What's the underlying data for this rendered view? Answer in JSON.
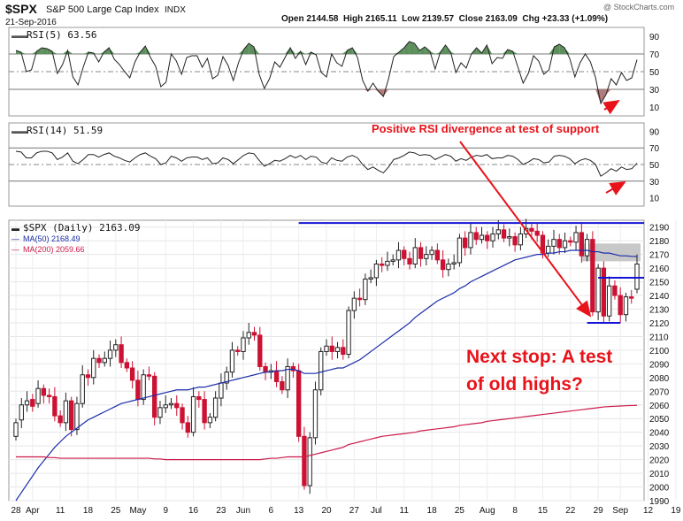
{
  "header": {
    "symbol": "$SPX",
    "name": "S&P 500 Large Cap Index",
    "exchange": "INDX",
    "date": "21-Sep-2016",
    "ohlc_text": "Open 2144.58  High 2165.11  Low 2139.57  Close 2163.09  Chg +23.33 (+1.09%)",
    "watermark": "@ StockCharts.com",
    "ohlc_arrow": "▲"
  },
  "annotations": {
    "divergence": "Positive RSI divergence at test of support",
    "next_stop_line1": "Next stop: A test",
    "next_stop_line2": "of old highs?"
  },
  "colors": {
    "price_up": "#222222",
    "price_down": "#cc1133",
    "ma50": "#1a2da8",
    "ma200": "#cc1a4a",
    "rsi_line": "#222222",
    "rsi_over": "#5d8f5d",
    "rsi_under": "#b07a7a",
    "annotation": "#e8131a",
    "resistance": "#1414d6",
    "gap_box": "#c8c8c8"
  },
  "chart_data": [
    {
      "type": "line",
      "title": "RSI(5) 63.56",
      "legend": "RSI(5) 63.56",
      "ylim": [
        0,
        100
      ],
      "yticks": [
        "90",
        "70",
        "50",
        "30",
        "10"
      ],
      "ytick_values": [
        90,
        70,
        50,
        30,
        10
      ],
      "reference_lines": [
        70,
        50,
        30
      ],
      "values": [
        74,
        72,
        50,
        52,
        73,
        77,
        76,
        73,
        48,
        58,
        74,
        44,
        35,
        55,
        72,
        71,
        61,
        72,
        77,
        64,
        58,
        50,
        43,
        61,
        72,
        79,
        66,
        56,
        33,
        38,
        70,
        62,
        47,
        66,
        68,
        68,
        55,
        65,
        42,
        46,
        67,
        57,
        40,
        60,
        75,
        82,
        78,
        47,
        31,
        42,
        61,
        55,
        66,
        77,
        65,
        73,
        58,
        72,
        69,
        49,
        44,
        70,
        60,
        56,
        74,
        77,
        66,
        40,
        28,
        37,
        28,
        22,
        42,
        67,
        72,
        77,
        84,
        82,
        74,
        78,
        73,
        53,
        72,
        80,
        72,
        49,
        60,
        54,
        70,
        77,
        71,
        80,
        59,
        66,
        65,
        75,
        73,
        55,
        37,
        48,
        68,
        62,
        47,
        52,
        78,
        81,
        77,
        65,
        44,
        60,
        70,
        61,
        43,
        14,
        24,
        42,
        35,
        49,
        40,
        43,
        63.56
      ]
    },
    {
      "type": "line",
      "title": "RSI(14) 51.59",
      "legend": "RSI(14) 51.59",
      "ylim": [
        0,
        100
      ],
      "yticks": [
        "90",
        "70",
        "50",
        "30",
        "10"
      ],
      "ytick_values": [
        90,
        70,
        50,
        30,
        10
      ],
      "reference_lines": [
        70,
        50,
        30
      ],
      "values": [
        66,
        65,
        58,
        58,
        64,
        66,
        66,
        64,
        56,
        59,
        64,
        54,
        51,
        56,
        62,
        62,
        59,
        62,
        64,
        60,
        58,
        55,
        53,
        58,
        62,
        64,
        60,
        57,
        50,
        52,
        60,
        58,
        54,
        58,
        59,
        59,
        56,
        58,
        51,
        52,
        58,
        56,
        51,
        56,
        61,
        64,
        63,
        55,
        48,
        51,
        55,
        54,
        57,
        61,
        58,
        61,
        56,
        60,
        59,
        53,
        51,
        58,
        55,
        54,
        59,
        61,
        58,
        50,
        44,
        47,
        43,
        40,
        47,
        56,
        58,
        61,
        65,
        64,
        61,
        62,
        61,
        56,
        59,
        62,
        60,
        54,
        57,
        55,
        59,
        61,
        60,
        62,
        57,
        58,
        58,
        61,
        60,
        56,
        50,
        53,
        57,
        56,
        52,
        53,
        60,
        61,
        60,
        57,
        51,
        55,
        57,
        55,
        50,
        36,
        40,
        45,
        42,
        47,
        44,
        45,
        51.59
      ]
    },
    {
      "type": "line",
      "title": "$SPX (Daily) 2163.09",
      "legend": [
        {
          "name": "$SPX (Daily) 2163.09",
          "color": "#222222"
        },
        {
          "name": "MA(50) 2168.49",
          "color": "#1a2da8"
        },
        {
          "name": "MA(200) 2059.66",
          "color": "#cc1a4a"
        }
      ],
      "ylim": [
        1990,
        2195
      ],
      "yticks": [
        "2190",
        "2180",
        "2170",
        "2160",
        "2150",
        "2140",
        "2130",
        "2120",
        "2110",
        "2100",
        "2090",
        "2080",
        "2070",
        "2060",
        "2050",
        "2040",
        "2030",
        "2020",
        "2010",
        "2000",
        "1990"
      ],
      "ytick_values": [
        2190,
        2180,
        2170,
        2160,
        2150,
        2140,
        2130,
        2120,
        2110,
        2100,
        2090,
        2080,
        2070,
        2060,
        2050,
        2040,
        2030,
        2020,
        2010,
        2000,
        1990
      ],
      "xticks": [
        "28",
        "Apr",
        "11",
        "18",
        "25",
        "May",
        "9",
        "16",
        "23",
        "Jun",
        "6",
        "13",
        "20",
        "27",
        "Jul",
        "11",
        "18",
        "25",
        "Aug",
        "8",
        "15",
        "22",
        "29",
        "Sep",
        "12",
        "19"
      ],
      "xtick_index": [
        0,
        3,
        8,
        13,
        18,
        22,
        27,
        32,
        37,
        41,
        46,
        51,
        56,
        61,
        65,
        70,
        75,
        80,
        85,
        90,
        95,
        100,
        105,
        109,
        114,
        119
      ],
      "series": [
        {
          "name": "$SPX (Daily) 2163.09",
          "close": [
            2047,
            2060,
            2063,
            2059,
            2072,
            2067,
            2066,
            2052,
            2047,
            2063,
            2042,
            2061,
            2082,
            2080,
            2094,
            2091,
            2094,
            2100,
            2104,
            2091,
            2087,
            2078,
            2064,
            2082,
            2081,
            2051,
            2058,
            2060,
            2061,
            2058,
            2047,
            2040,
            2066,
            2064,
            2047,
            2051,
            2065,
            2076,
            2084,
            2100,
            2099,
            2109,
            2113,
            2111,
            2088,
            2084,
            2085,
            2077,
            2071,
            2088,
            2085,
            2037,
            2001,
            2036,
            2071,
            2099,
            2103,
            2099,
            2102,
            2097,
            2129,
            2138,
            2137,
            2152,
            2153,
            2163,
            2162,
            2165,
            2166,
            2173,
            2167,
            2163,
            2175,
            2167,
            2170,
            2173,
            2166,
            2159,
            2163,
            2164,
            2182,
            2175,
            2186,
            2181,
            2184,
            2180,
            2185,
            2188,
            2182,
            2183,
            2177,
            2185,
            2189,
            2187,
            2184,
            2171,
            2176,
            2181,
            2175,
            2180,
            2179,
            2186,
            2169,
            2181,
            2128,
            2160,
            2125,
            2147,
            2140,
            2126,
            2139,
            2138,
            2163
          ],
          "open": [
            2037,
            2049,
            2060,
            2064,
            2061,
            2072,
            2067,
            2066,
            2052,
            2047,
            2063,
            2042,
            2061,
            2082,
            2080,
            2094,
            2091,
            2094,
            2100,
            2104,
            2091,
            2087,
            2078,
            2064,
            2082,
            2081,
            2051,
            2058,
            2060,
            2061,
            2058,
            2047,
            2040,
            2066,
            2064,
            2047,
            2051,
            2065,
            2076,
            2084,
            2100,
            2099,
            2109,
            2113,
            2111,
            2088,
            2084,
            2085,
            2077,
            2071,
            2088,
            2085,
            2037,
            2001,
            2036,
            2071,
            2099,
            2103,
            2099,
            2102,
            2097,
            2129,
            2138,
            2137,
            2152,
            2153,
            2163,
            2162,
            2165,
            2166,
            2173,
            2167,
            2163,
            2175,
            2167,
            2170,
            2173,
            2166,
            2159,
            2163,
            2164,
            2182,
            2175,
            2186,
            2181,
            2184,
            2180,
            2185,
            2188,
            2182,
            2183,
            2177,
            2185,
            2189,
            2187,
            2184,
            2171,
            2176,
            2181,
            2175,
            2180,
            2179,
            2186,
            2169,
            2181,
            2128,
            2160,
            2125,
            2147,
            2140,
            2126,
            2139,
            2144.58
          ],
          "ma50": [
            1990,
            1996,
            2002,
            2008,
            2014,
            2019,
            2024,
            2029,
            2033,
            2037,
            2040,
            2043,
            2046,
            2049,
            2051,
            2053,
            2055,
            2057,
            2059,
            2061,
            2062,
            2063,
            2064,
            2065,
            2066,
            2067,
            2068,
            2069,
            2070,
            2071,
            2071,
            2071,
            2072,
            2073,
            2073,
            2074,
            2075,
            2076,
            2077,
            2078,
            2079,
            2080,
            2081,
            2082,
            2083,
            2084,
            2084,
            2085,
            2085,
            2086,
            2086,
            2085,
            2083,
            2083,
            2083,
            2084,
            2085,
            2086,
            2087,
            2087,
            2089,
            2091,
            2093,
            2096,
            2099,
            2102,
            2105,
            2108,
            2111,
            2114,
            2117,
            2120,
            2124,
            2127,
            2130,
            2133,
            2136,
            2138,
            2140,
            2142,
            2145,
            2147,
            2150,
            2152,
            2154,
            2156,
            2158,
            2160,
            2162,
            2164,
            2166,
            2167,
            2168,
            2169,
            2170,
            2170,
            2171,
            2171,
            2172,
            2172,
            2173,
            2173,
            2173,
            2173,
            2172,
            2172,
            2171,
            2171,
            2170,
            2169,
            2169,
            2168.6,
            2168.49
          ],
          "ma200": [
            2022,
            2022,
            2022,
            2022,
            2022,
            2022,
            2021.5,
            2021.5,
            2021,
            2021,
            2021,
            2021,
            2021,
            2021,
            2021,
            2021,
            2021,
            2021,
            2021,
            2021,
            2021,
            2021,
            2021,
            2021,
            2021,
            2020.5,
            2020.5,
            2020,
            2020,
            2020,
            2020,
            2020,
            2020,
            2020,
            2020,
            2020,
            2020,
            2020,
            2020,
            2020,
            2020,
            2020,
            2020,
            2020,
            2020,
            2020.5,
            2021,
            2021,
            2021.5,
            2022,
            2022,
            2022,
            2022,
            2023,
            2024,
            2025,
            2026,
            2027,
            2028,
            2029,
            2031,
            2032,
            2033,
            2034,
            2035,
            2036,
            2037,
            2037.5,
            2038,
            2038.5,
            2039,
            2039.5,
            2040,
            2041,
            2041.5,
            2042,
            2042.5,
            2043,
            2043.5,
            2044,
            2045,
            2045.5,
            2046,
            2046.5,
            2047,
            2048,
            2048.5,
            2049,
            2049.5,
            2050,
            2050.5,
            2051,
            2051.5,
            2052,
            2052.5,
            2053,
            2053.5,
            2054,
            2054.5,
            2055,
            2055.5,
            2056,
            2056.5,
            2057,
            2057.5,
            2058,
            2058.5,
            2058.8,
            2059,
            2059.2,
            2059.4,
            2059.55,
            2059.66
          ]
        },
        {
          "name": "MA(50) 2168.49",
          "last": 2168.49
        },
        {
          "name": "MA(200) 2059.66",
          "last": 2059.66
        }
      ],
      "resistance_levels": [
        2193,
        2153,
        2120
      ],
      "gap_zone": [
        2165,
        2178
      ]
    }
  ]
}
